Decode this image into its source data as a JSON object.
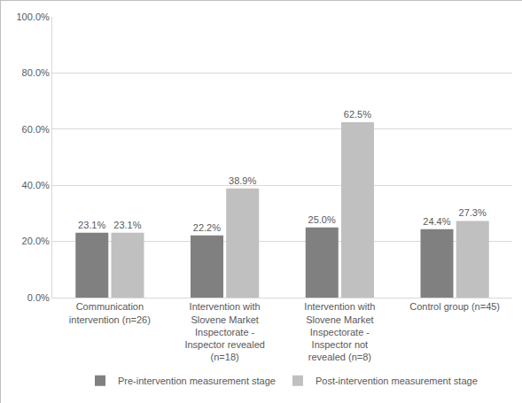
{
  "chart_data": {
    "type": "bar",
    "categories": [
      "Communication intervention (n=26)",
      "Intervention with Slovene Market Inspectorate - Inspector revealed (n=18)",
      "Intervention with Slovene Market Inspectorate - Inspector not revealed (n=8)",
      "Control group (n=45)"
    ],
    "series": [
      {
        "name": "Pre-intervention measurement stage",
        "color": "#808080",
        "values": [
          23.1,
          22.2,
          25.0,
          24.4
        ],
        "value_labels": [
          "23.1%",
          "22.2%",
          "25.0%",
          "24.4%"
        ]
      },
      {
        "name": "Post-intervention measurement stage",
        "color": "#c0c0c0",
        "values": [
          23.1,
          38.9,
          62.5,
          27.3
        ],
        "value_labels": [
          "23.1%",
          "38.9%",
          "62.5%",
          "27.3%"
        ]
      }
    ],
    "ylim": [
      0,
      100
    ],
    "yticks": [
      {
        "value": 0,
        "label": "0.0%"
      },
      {
        "value": 20,
        "label": "20.0%"
      },
      {
        "value": 40,
        "label": "40.0%"
      },
      {
        "value": 60,
        "label": "60.0%"
      },
      {
        "value": 80,
        "label": "80.0%"
      },
      {
        "value": 100,
        "label": "100.0%"
      }
    ],
    "grid": true,
    "legend": "bottom",
    "data_labels": true
  }
}
